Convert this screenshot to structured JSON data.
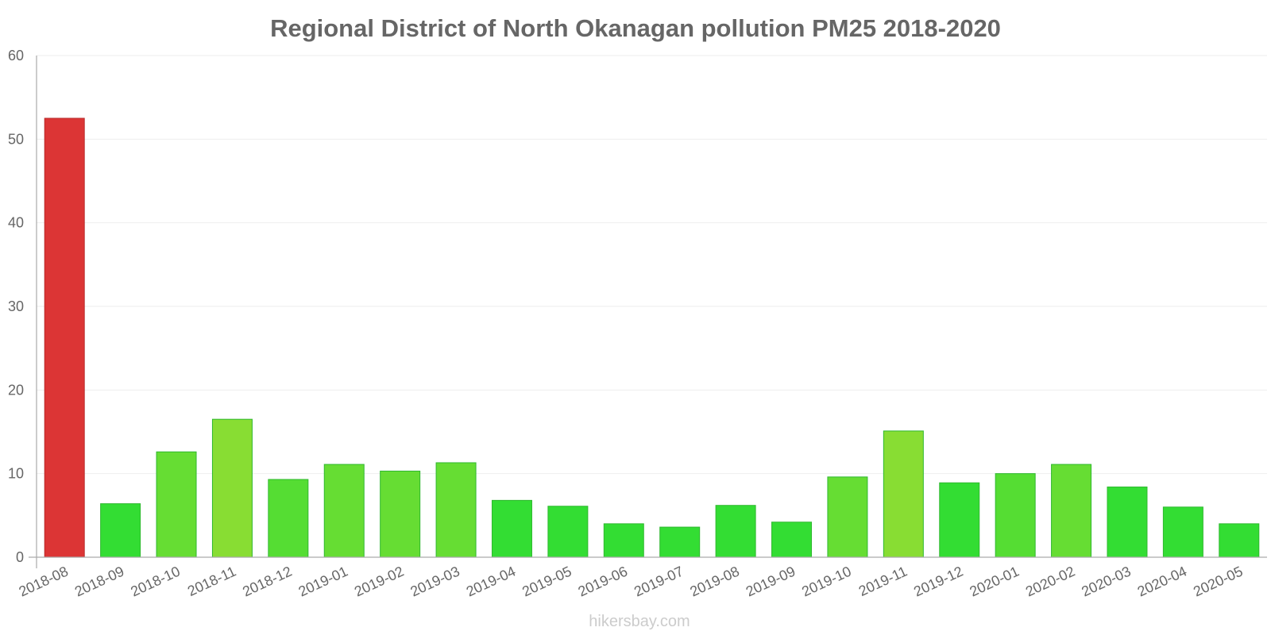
{
  "chart_data": {
    "type": "bar",
    "title": "Regional District of North Okanagan pollution PM25 2018-2020",
    "xlabel": "",
    "ylabel": "",
    "ylim": [
      0,
      60
    ],
    "yticks": [
      0,
      10,
      20,
      30,
      40,
      50,
      60
    ],
    "grid": true,
    "categories": [
      "2018-08",
      "2018-09",
      "2018-10",
      "2018-11",
      "2018-12",
      "2019-01",
      "2019-02",
      "2019-03",
      "2019-04",
      "2019-05",
      "2019-06",
      "2019-07",
      "2019-08",
      "2019-09",
      "2019-10",
      "2019-11",
      "2019-12",
      "2020-01",
      "2020-02",
      "2020-03",
      "2020-04",
      "2020-05"
    ],
    "values": [
      52.5,
      6.4,
      12.6,
      16.5,
      9.3,
      11.1,
      10.3,
      11.3,
      6.8,
      6.1,
      4.0,
      3.6,
      6.2,
      4.2,
      9.6,
      15.1,
      8.9,
      10.0,
      11.1,
      8.4,
      6.0,
      4.0
    ],
    "colors": [
      "#dc3535",
      "#33dd33",
      "#66dd33",
      "#88dd33",
      "#55dd33",
      "#66dd33",
      "#66dd33",
      "#66dd33",
      "#33dd33",
      "#33dd33",
      "#33dd33",
      "#33dd33",
      "#33dd33",
      "#33dd33",
      "#66dd33",
      "#88dd33",
      "#33dd33",
      "#55dd33",
      "#66dd33",
      "#33dd33",
      "#33dd33",
      "#33dd33"
    ],
    "source": "hikersbay.com"
  }
}
